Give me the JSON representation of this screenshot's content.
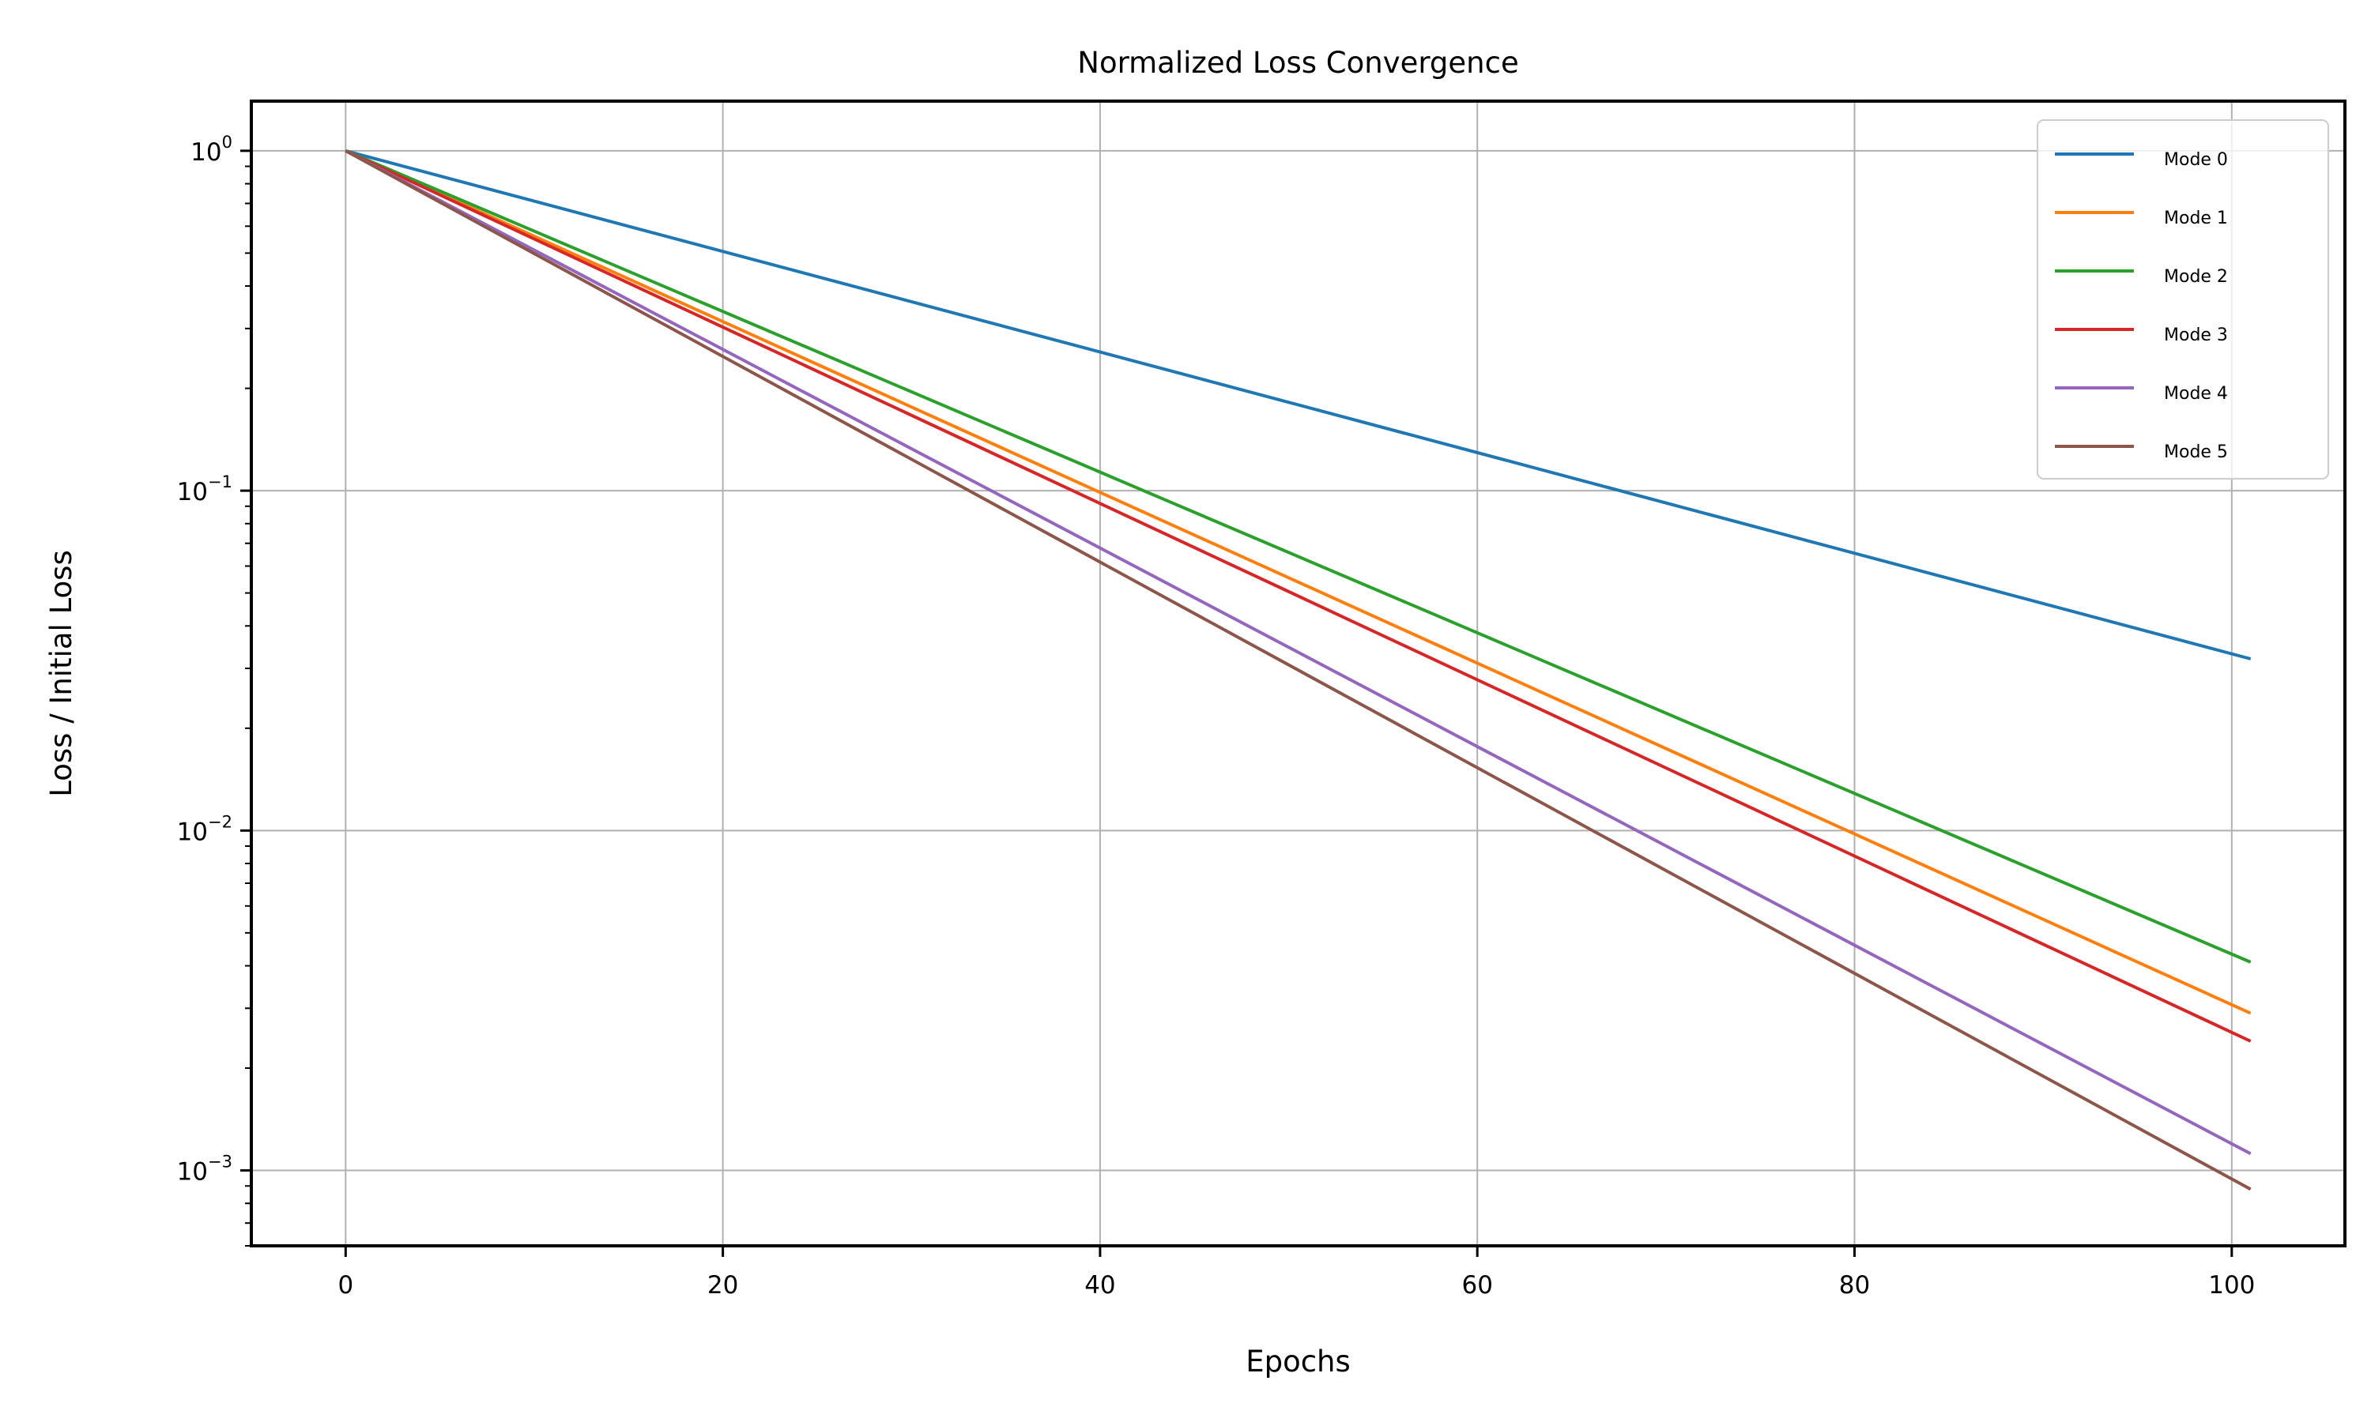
{
  "chart_data": {
    "type": "line",
    "title": "Normalized Loss Convergence",
    "xlabel": "Epochs",
    "ylabel": "Loss / Initial Loss",
    "xlim": [
      -5,
      106
    ],
    "ylim": [
      0.0006,
      1.4
    ],
    "yscale": "log",
    "grid": true,
    "legend_position": "top-right",
    "x_ticks": [
      0,
      20,
      40,
      60,
      80,
      100
    ],
    "y_ticks": [
      {
        "value": 1,
        "base": "10",
        "exp": "0"
      },
      {
        "value": 0.1,
        "base": "10",
        "exp": "−1"
      },
      {
        "value": 0.01,
        "base": "10",
        "exp": "−2"
      },
      {
        "value": 0.001,
        "base": "10",
        "exp": "−3"
      }
    ],
    "series": [
      {
        "name": "Mode 0",
        "color": "#1f77b4",
        "x": [
          0,
          101
        ],
        "y": [
          1,
          0.032
        ]
      },
      {
        "name": "Mode 1",
        "color": "#ff7f0e",
        "x": [
          0,
          101
        ],
        "y": [
          1,
          0.0029
        ]
      },
      {
        "name": "Mode 2",
        "color": "#2ca02c",
        "x": [
          0,
          101
        ],
        "y": [
          1,
          0.0041
        ]
      },
      {
        "name": "Mode 3",
        "color": "#d62728",
        "x": [
          0,
          101
        ],
        "y": [
          1,
          0.0024
        ]
      },
      {
        "name": "Mode 4",
        "color": "#9467bd",
        "x": [
          0,
          101
        ],
        "y": [
          1,
          0.00112
        ]
      },
      {
        "name": "Mode 5",
        "color": "#8c564b",
        "x": [
          0,
          101
        ],
        "y": [
          1,
          0.00088
        ]
      }
    ]
  }
}
